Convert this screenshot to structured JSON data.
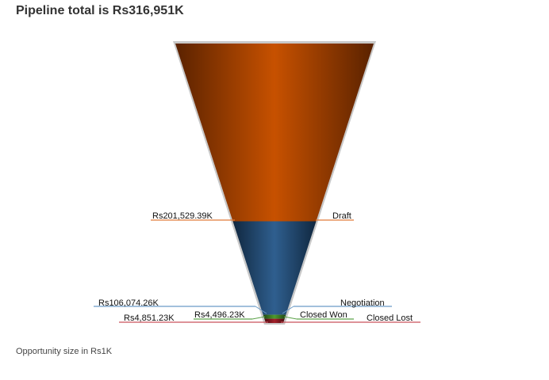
{
  "chart_data": {
    "type": "funnel",
    "title": "Pipeline total is Rs316,951K",
    "footnote": "Opportunity size in Rs1K",
    "stages": [
      {
        "name": "Draft",
        "value": 201529.39,
        "value_label": "Rs201,529.39K",
        "color": "#c75100",
        "color_dark": "#5a2200",
        "line_color": "#e07b39"
      },
      {
        "name": "Negotiation",
        "value": 106074.26,
        "value_label": "Rs106,074.26K",
        "color": "#2f5f8f",
        "color_dark": "#10273f",
        "line_color": "#6b9bc6"
      },
      {
        "name": "Closed Won",
        "value": 4496.23,
        "value_label": "Rs4,496.23K",
        "color": "#4e9a2e",
        "color_dark": "#1f4512",
        "line_color": "#5da34a"
      },
      {
        "name": "Closed Lost",
        "value": 4851.23,
        "value_label": "Rs4,851.23K",
        "color": "#a3202a",
        "color_dark": "#4a0b10",
        "line_color": "#c9505a"
      }
    ]
  }
}
